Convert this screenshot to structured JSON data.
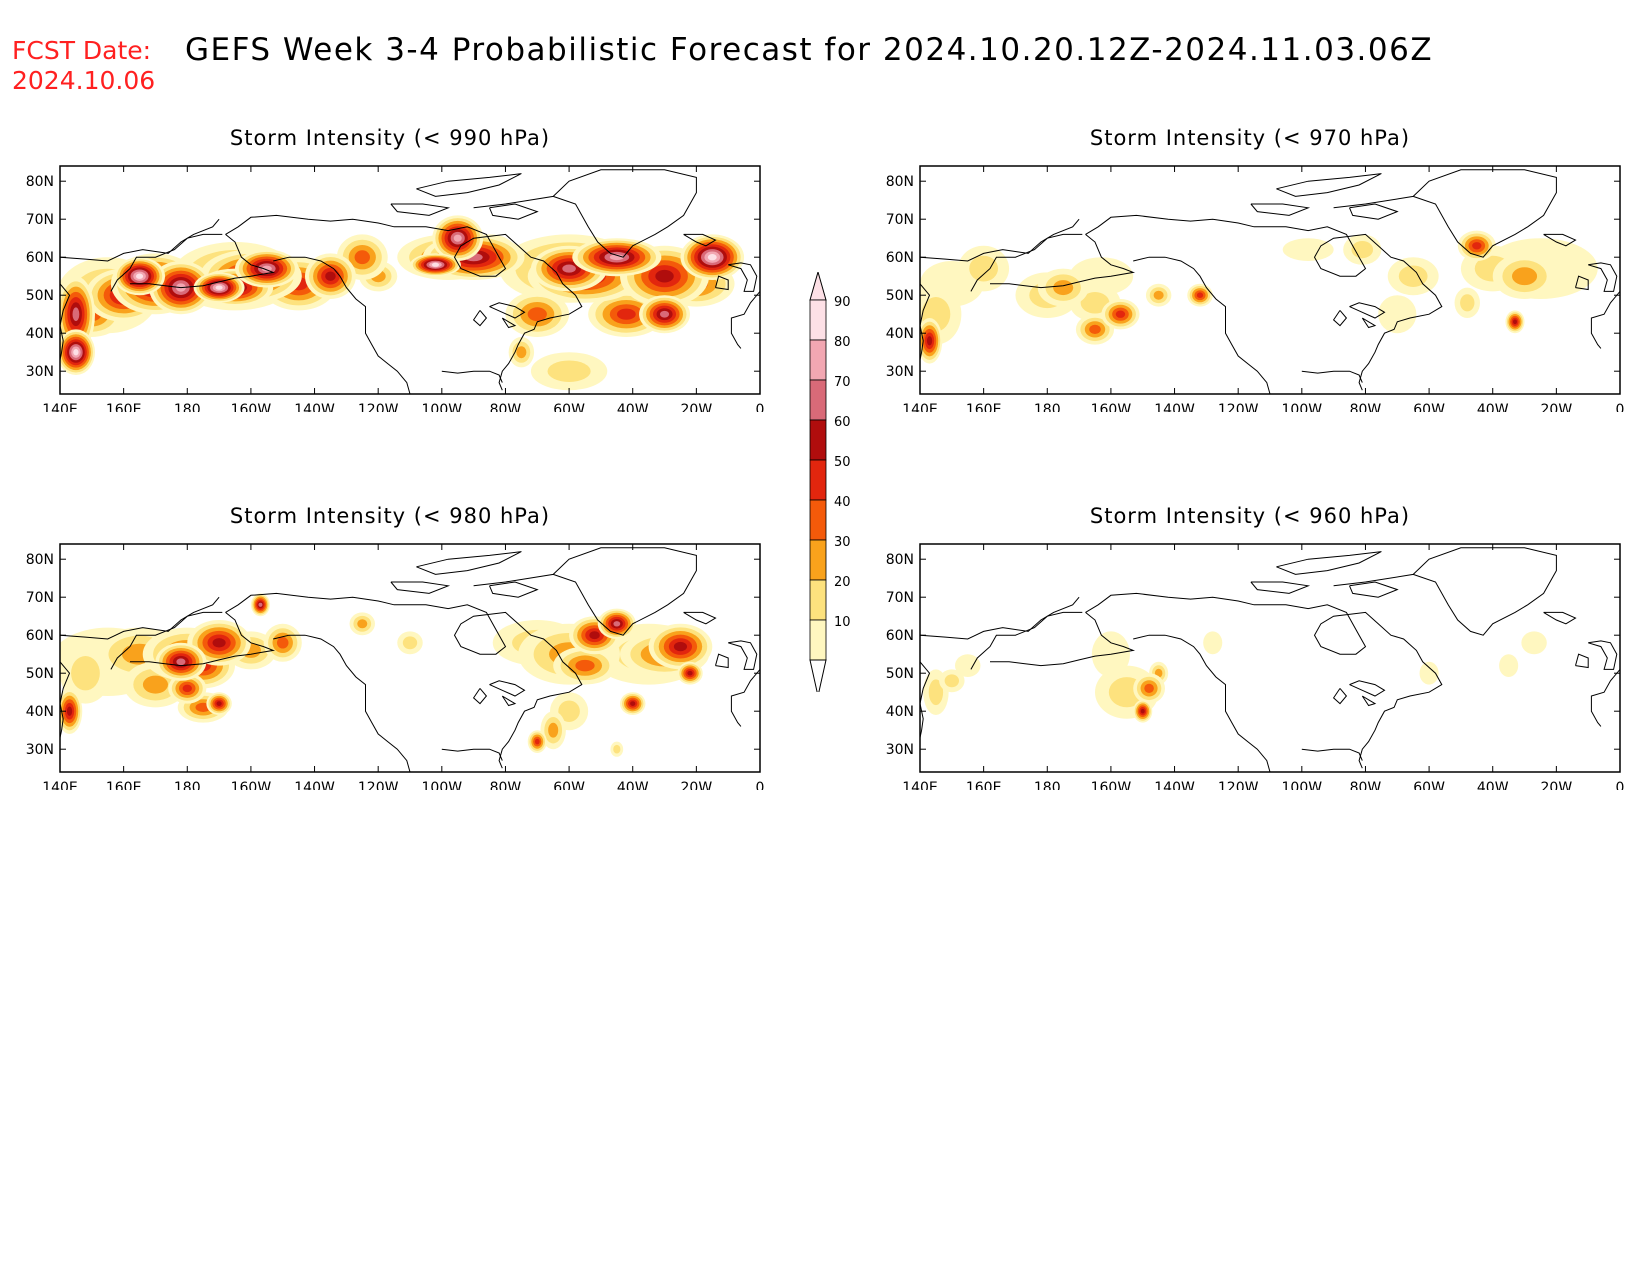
{
  "header": {
    "fcst_label": "FCST Date:",
    "fcst_date": "2024.10.06",
    "title": "GEFS Week 3-4 Probabilistic Forecast for 2024.10.20.12Z-2024.11.03.06Z"
  },
  "axes": {
    "lon_labels": [
      "140E",
      "160E",
      "180",
      "160W",
      "140W",
      "120W",
      "100W",
      "80W",
      "60W",
      "40W",
      "20W",
      "0"
    ],
    "lat_labels": [
      "80N",
      "70N",
      "60N",
      "50N",
      "40N",
      "30N"
    ]
  },
  "colorbar": {
    "levels": [
      "90",
      "80",
      "70",
      "60",
      "50",
      "40",
      "30",
      "20",
      "10"
    ],
    "colors": [
      "#fde0e6",
      "#f2a7b2",
      "#d96a78",
      "#b00d0d",
      "#e2260e",
      "#f45a0a",
      "#f9a21c",
      "#fde27e",
      "#fff7c0"
    ]
  },
  "panels": [
    {
      "id": "p990",
      "title": "Storm Intensity (< 990 hPa)",
      "level": 990
    },
    {
      "id": "p970",
      "title": "Storm Intensity (< 970 hPa)",
      "level": 970
    },
    {
      "id": "p980",
      "title": "Storm Intensity (< 980 hPa)",
      "level": 980
    },
    {
      "id": "p960",
      "title": "Storm Intensity (< 960 hPa)",
      "level": 960
    }
  ]
}
